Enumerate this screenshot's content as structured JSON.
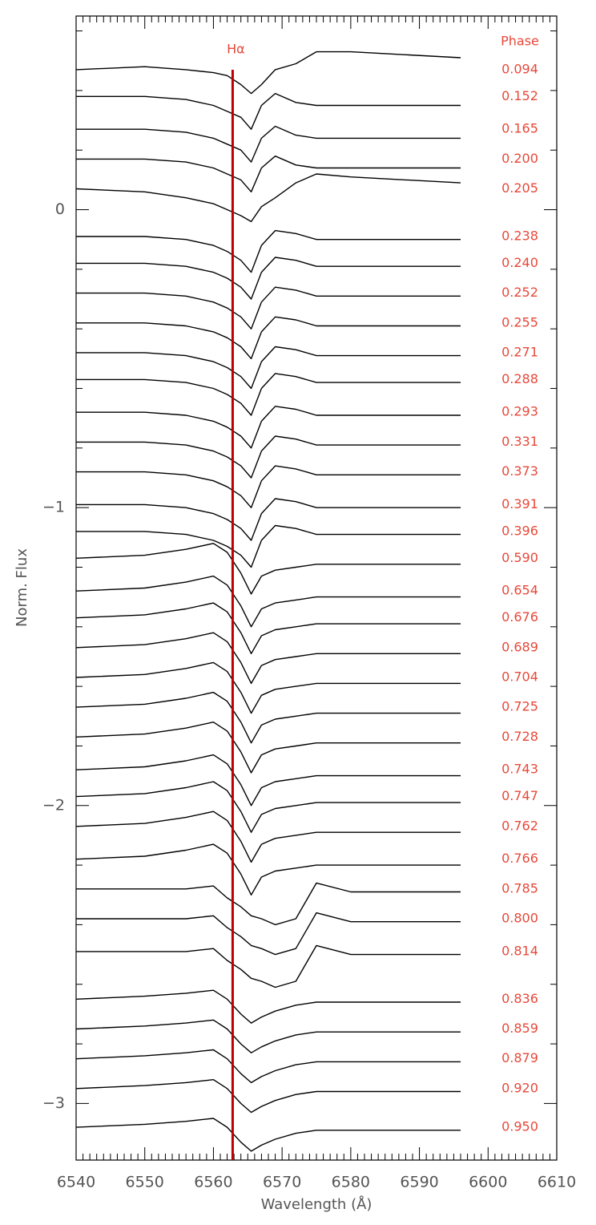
{
  "chart_data": {
    "type": "line",
    "xlabel": "Wavelength (Å)",
    "ylabel": "Norm. Flux",
    "legend_title": "Phase",
    "color": "#000000",
    "label_color": "#e8483a",
    "annotation": {
      "x": 6562.8,
      "label": "Hα",
      "color": "#c00000"
    },
    "xlim": [
      6540,
      6610
    ],
    "xticks": [
      6540,
      6550,
      6560,
      6570,
      6580,
      6590,
      6600,
      6610
    ],
    "ylim": [
      -3.19,
      0.65
    ],
    "yticks": [
      0,
      {
        "value": -1,
        "label": "−1"
      },
      {
        "value": -2,
        "label": "−2"
      },
      {
        "value": -3,
        "label": "−3"
      }
    ],
    "x": [
      6540,
      6550,
      6556,
      6560,
      6562,
      6564,
      6565.5,
      6567,
      6569,
      6572,
      6575,
      6580,
      6588,
      6596
    ],
    "series": [
      {
        "name": "0.094",
        "values": [
          0.47,
          0.48,
          0.47,
          0.46,
          0.45,
          0.42,
          0.39,
          0.42,
          0.47,
          0.49,
          0.53,
          0.53,
          0.52,
          0.51
        ]
      },
      {
        "name": "0.152",
        "values": [
          0.38,
          0.38,
          0.37,
          0.35,
          0.33,
          0.31,
          0.27,
          0.35,
          0.39,
          0.36,
          0.35,
          0.35,
          0.35,
          0.35
        ]
      },
      {
        "name": "0.165",
        "values": [
          0.27,
          0.27,
          0.26,
          0.24,
          0.22,
          0.2,
          0.16,
          0.24,
          0.28,
          0.25,
          0.24,
          0.24,
          0.24,
          0.24
        ]
      },
      {
        "name": "0.200",
        "values": [
          0.17,
          0.17,
          0.16,
          0.14,
          0.12,
          0.1,
          0.06,
          0.14,
          0.18,
          0.15,
          0.14,
          0.14,
          0.14,
          0.14
        ]
      },
      {
        "name": "0.205",
        "values": [
          0.07,
          0.06,
          0.04,
          0.02,
          0.0,
          -0.02,
          -0.04,
          0.01,
          0.04,
          0.09,
          0.12,
          0.11,
          0.1,
          0.09
        ]
      },
      {
        "name": "0.238",
        "values": [
          -0.09,
          -0.09,
          -0.1,
          -0.12,
          -0.14,
          -0.17,
          -0.21,
          -0.12,
          -0.07,
          -0.08,
          -0.1,
          -0.1,
          -0.1,
          -0.1
        ]
      },
      {
        "name": "0.240",
        "values": [
          -0.18,
          -0.18,
          -0.19,
          -0.21,
          -0.23,
          -0.26,
          -0.3,
          -0.21,
          -0.16,
          -0.17,
          -0.19,
          -0.19,
          -0.19,
          -0.19
        ]
      },
      {
        "name": "0.252",
        "values": [
          -0.28,
          -0.28,
          -0.29,
          -0.31,
          -0.33,
          -0.36,
          -0.4,
          -0.31,
          -0.26,
          -0.27,
          -0.29,
          -0.29,
          -0.29,
          -0.29
        ]
      },
      {
        "name": "0.255",
        "values": [
          -0.38,
          -0.38,
          -0.39,
          -0.41,
          -0.43,
          -0.46,
          -0.5,
          -0.41,
          -0.36,
          -0.37,
          -0.39,
          -0.39,
          -0.39,
          -0.39
        ]
      },
      {
        "name": "0.271",
        "values": [
          -0.48,
          -0.48,
          -0.49,
          -0.51,
          -0.53,
          -0.56,
          -0.6,
          -0.51,
          -0.46,
          -0.47,
          -0.49,
          -0.49,
          -0.49,
          -0.49
        ]
      },
      {
        "name": "0.288",
        "values": [
          -0.57,
          -0.57,
          -0.58,
          -0.6,
          -0.62,
          -0.65,
          -0.69,
          -0.6,
          -0.55,
          -0.56,
          -0.58,
          -0.58,
          -0.58,
          -0.58
        ]
      },
      {
        "name": "0.293",
        "values": [
          -0.68,
          -0.68,
          -0.69,
          -0.71,
          -0.73,
          -0.76,
          -0.8,
          -0.71,
          -0.66,
          -0.67,
          -0.69,
          -0.69,
          -0.69,
          -0.69
        ]
      },
      {
        "name": "0.331",
        "values": [
          -0.78,
          -0.78,
          -0.79,
          -0.81,
          -0.83,
          -0.86,
          -0.9,
          -0.81,
          -0.76,
          -0.77,
          -0.79,
          -0.79,
          -0.79,
          -0.79
        ]
      },
      {
        "name": "0.373",
        "values": [
          -0.88,
          -0.88,
          -0.89,
          -0.91,
          -0.93,
          -0.96,
          -1.0,
          -0.91,
          -0.86,
          -0.87,
          -0.89,
          -0.89,
          -0.89,
          -0.89
        ]
      },
      {
        "name": "0.391",
        "values": [
          -0.99,
          -0.99,
          -1.0,
          -1.02,
          -1.04,
          -1.07,
          -1.11,
          -1.02,
          -0.97,
          -0.98,
          -1.0,
          -1.0,
          -1.0,
          -1.0
        ]
      },
      {
        "name": "0.396",
        "values": [
          -1.08,
          -1.08,
          -1.09,
          -1.11,
          -1.13,
          -1.16,
          -1.2,
          -1.11,
          -1.06,
          -1.07,
          -1.09,
          -1.09,
          -1.09,
          -1.09
        ]
      },
      {
        "name": "0.590",
        "values": [
          -1.17,
          -1.16,
          -1.14,
          -1.12,
          -1.15,
          -1.22,
          -1.29,
          -1.23,
          -1.21,
          -1.2,
          -1.19,
          -1.19,
          -1.19,
          -1.19
        ]
      },
      {
        "name": "0.654",
        "values": [
          -1.28,
          -1.27,
          -1.25,
          -1.23,
          -1.26,
          -1.33,
          -1.4,
          -1.34,
          -1.32,
          -1.31,
          -1.3,
          -1.3,
          -1.3,
          -1.3
        ]
      },
      {
        "name": "0.676",
        "values": [
          -1.37,
          -1.36,
          -1.34,
          -1.32,
          -1.35,
          -1.42,
          -1.49,
          -1.43,
          -1.41,
          -1.4,
          -1.39,
          -1.39,
          -1.39,
          -1.39
        ]
      },
      {
        "name": "0.689",
        "values": [
          -1.47,
          -1.46,
          -1.44,
          -1.42,
          -1.45,
          -1.52,
          -1.59,
          -1.53,
          -1.51,
          -1.5,
          -1.49,
          -1.49,
          -1.49,
          -1.49
        ]
      },
      {
        "name": "0.704",
        "values": [
          -1.57,
          -1.56,
          -1.54,
          -1.52,
          -1.55,
          -1.62,
          -1.69,
          -1.63,
          -1.61,
          -1.6,
          -1.59,
          -1.59,
          -1.59,
          -1.59
        ]
      },
      {
        "name": "0.725",
        "values": [
          -1.67,
          -1.66,
          -1.64,
          -1.62,
          -1.65,
          -1.72,
          -1.79,
          -1.73,
          -1.71,
          -1.7,
          -1.69,
          -1.69,
          -1.69,
          -1.69
        ]
      },
      {
        "name": "0.728",
        "values": [
          -1.77,
          -1.76,
          -1.74,
          -1.72,
          -1.75,
          -1.82,
          -1.89,
          -1.83,
          -1.81,
          -1.8,
          -1.79,
          -1.79,
          -1.79,
          -1.79
        ]
      },
      {
        "name": "0.743",
        "values": [
          -1.88,
          -1.87,
          -1.85,
          -1.83,
          -1.86,
          -1.93,
          -2.0,
          -1.94,
          -1.92,
          -1.91,
          -1.9,
          -1.9,
          -1.9,
          -1.9
        ]
      },
      {
        "name": "0.747",
        "values": [
          -1.97,
          -1.96,
          -1.94,
          -1.92,
          -1.95,
          -2.02,
          -2.09,
          -2.03,
          -2.01,
          -2.0,
          -1.99,
          -1.99,
          -1.99,
          -1.99
        ]
      },
      {
        "name": "0.762",
        "values": [
          -2.07,
          -2.06,
          -2.04,
          -2.02,
          -2.05,
          -2.12,
          -2.19,
          -2.13,
          -2.11,
          -2.1,
          -2.09,
          -2.09,
          -2.09,
          -2.09
        ]
      },
      {
        "name": "0.766",
        "values": [
          -2.18,
          -2.17,
          -2.15,
          -2.13,
          -2.16,
          -2.23,
          -2.3,
          -2.24,
          -2.22,
          -2.21,
          -2.2,
          -2.2,
          -2.2,
          -2.2
        ]
      },
      {
        "name": "0.785",
        "values": [
          -2.28,
          -2.28,
          -2.28,
          -2.27,
          -2.31,
          -2.34,
          -2.37,
          -2.38,
          -2.4,
          -2.38,
          -2.26,
          -2.29,
          -2.29,
          -2.29
        ]
      },
      {
        "name": "0.800",
        "values": [
          -2.38,
          -2.38,
          -2.38,
          -2.37,
          -2.41,
          -2.44,
          -2.47,
          -2.48,
          -2.5,
          -2.48,
          -2.36,
          -2.39,
          -2.39,
          -2.39
        ]
      },
      {
        "name": "0.814",
        "values": [
          -2.49,
          -2.49,
          -2.49,
          -2.48,
          -2.52,
          -2.55,
          -2.58,
          -2.59,
          -2.61,
          -2.59,
          -2.47,
          -2.5,
          -2.5,
          -2.5
        ]
      },
      {
        "name": "0.836",
        "values": [
          -2.65,
          -2.64,
          -2.63,
          -2.62,
          -2.65,
          -2.7,
          -2.73,
          -2.71,
          -2.69,
          -2.67,
          -2.66,
          -2.66,
          -2.66,
          -2.66
        ]
      },
      {
        "name": "0.859",
        "values": [
          -2.75,
          -2.74,
          -2.73,
          -2.72,
          -2.75,
          -2.8,
          -2.83,
          -2.81,
          -2.79,
          -2.77,
          -2.76,
          -2.76,
          -2.76,
          -2.76
        ]
      },
      {
        "name": "0.879",
        "values": [
          -2.85,
          -2.84,
          -2.83,
          -2.82,
          -2.85,
          -2.9,
          -2.93,
          -2.91,
          -2.89,
          -2.87,
          -2.86,
          -2.86,
          -2.86,
          -2.86
        ]
      },
      {
        "name": "0.920",
        "values": [
          -2.95,
          -2.94,
          -2.93,
          -2.92,
          -2.95,
          -3.0,
          -3.03,
          -3.01,
          -2.99,
          -2.97,
          -2.96,
          -2.96,
          -2.96,
          -2.96
        ]
      },
      {
        "name": "0.950",
        "values": [
          -3.08,
          -3.07,
          -3.06,
          -3.05,
          -3.08,
          -3.13,
          -3.16,
          -3.14,
          -3.12,
          -3.1,
          -3.09,
          -3.09,
          -3.09,
          -3.09
        ]
      }
    ]
  }
}
